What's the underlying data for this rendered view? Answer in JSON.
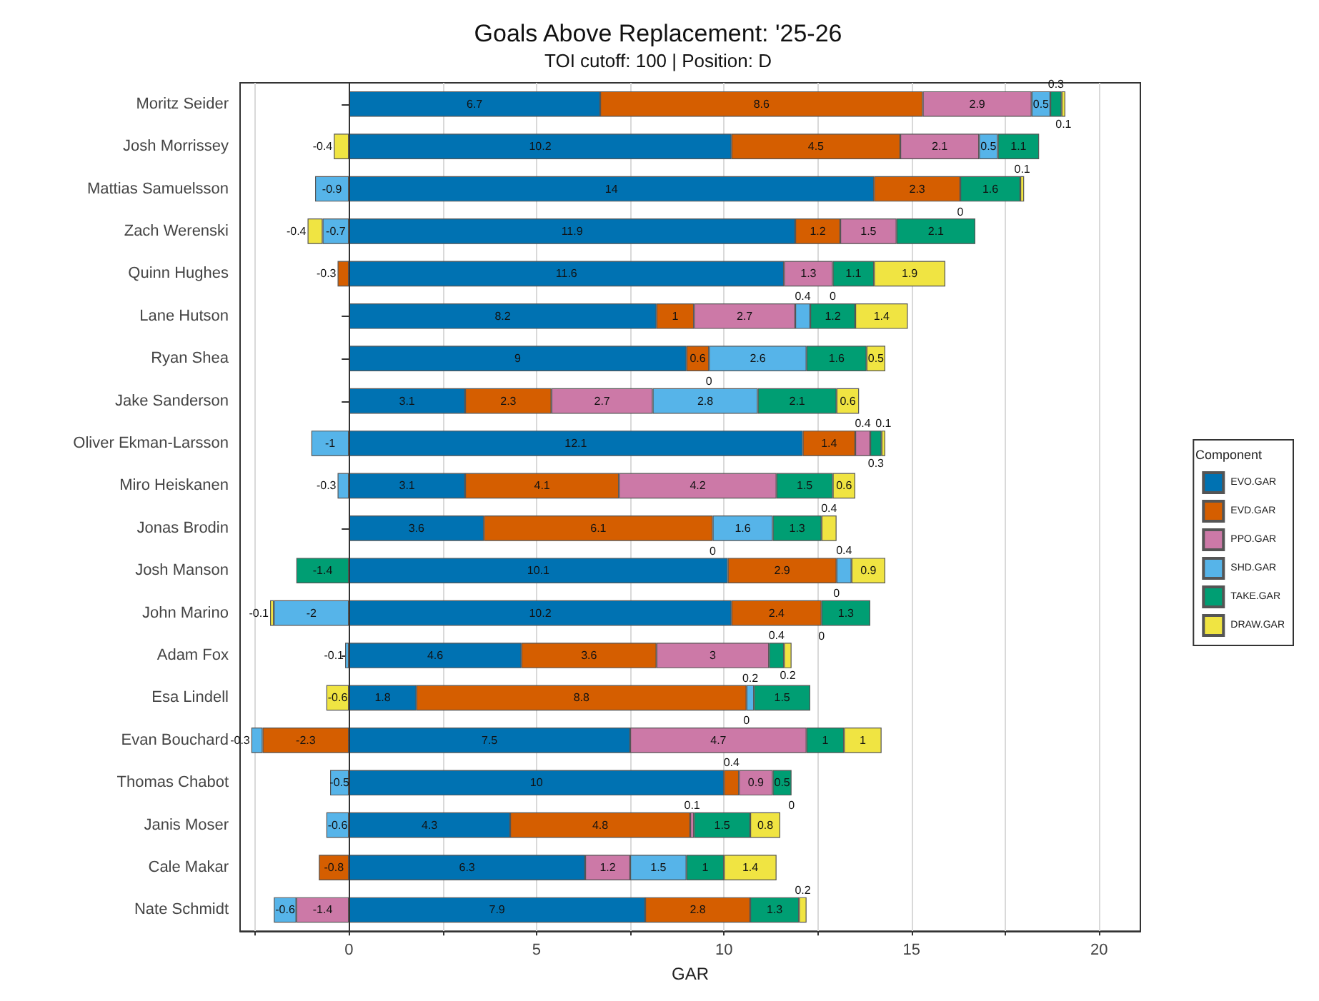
{
  "chart_data": {
    "type": "bar",
    "orientation": "horizontal",
    "stacked": true,
    "title": "Goals Above Replacement: '25-26",
    "subtitle": "TOI cutoff: 100 | Position: D",
    "xlabel": "GAR",
    "legend_title": "Component",
    "legend": "right",
    "grid": "x",
    "annotations": [
      {
        "text": "0",
        "x": 16.3,
        "y": "Mattias Samuelsson"
      },
      {
        "text": "0",
        "x": 12.9,
        "y": "Quinn Hughes"
      },
      {
        "text": "0",
        "x": 9.6,
        "y": "Ryan Shea"
      },
      {
        "text": "0",
        "x": 9.7,
        "y": "Jonas Brodin"
      },
      {
        "text": "0",
        "x": 13,
        "y": "Josh Manson"
      },
      {
        "text": "0",
        "x": 12.6,
        "y": "John Marino"
      },
      {
        "text": "0",
        "x": 10.6,
        "y": "Esa Lindell"
      },
      {
        "text": "0",
        "x": 11.8,
        "y": "Thomas Chabot"
      }
    ],
    "categories": [
      "Moritz Seider",
      "Josh Morrissey",
      "Mattias Samuelsson",
      "Zach Werenski",
      "Quinn Hughes",
      "Lane Hutson",
      "Ryan Shea",
      "Jake Sanderson",
      "Oliver Ekman-Larsson",
      "Miro Heiskanen",
      "Jonas Brodin",
      "Josh Manson",
      "John Marino",
      "Adam Fox",
      "Esa Lindell",
      "Evan Bouchard",
      "Thomas Chabot",
      "Janis Moser",
      "Cale Makar",
      "Nate Schmidt"
    ],
    "xlim": [
      -2.9,
      21.1
    ],
    "xticks": [
      {
        "value": -2.5,
        "label": null
      },
      0,
      {
        "value": 2.5,
        "label": null
      },
      5,
      {
        "value": 7.5,
        "label": null
      },
      10,
      {
        "value": 12.5,
        "label": null
      },
      15,
      {
        "value": 17.5,
        "label": null
      },
      20
    ],
    "ref_lines": [
      {
        "axis": "x",
        "value": 0,
        "color": "#333333"
      }
    ],
    "series": [
      {
        "name": "EVO.GAR",
        "color": "#0072b2",
        "values": [
          6.7,
          10.2,
          14,
          11.9,
          11.6,
          8.2,
          9,
          3.1,
          12.1,
          3.1,
          3.6,
          10.1,
          10.2,
          4.6,
          1.8,
          7.5,
          10,
          4.3,
          6.3,
          7.9
        ],
        "value_labels": [
          "6.7",
          "10.2",
          "14",
          "11.9",
          "11.6",
          "8.2",
          "9",
          "3.1",
          "12.1",
          "3.1",
          "3.6",
          "10.1",
          "10.2",
          "4.6",
          "1.8",
          "7.5",
          "10",
          "4.3",
          "6.3",
          "7.9"
        ]
      },
      {
        "name": "EVD.GAR",
        "color": "#d55e00",
        "values": [
          8.6,
          4.5,
          2.3,
          1.2,
          -0.3,
          1,
          0.6,
          2.3,
          1.4,
          4.1,
          6.1,
          2.9,
          2.4,
          3.6,
          8.8,
          -2.3,
          0.4,
          4.8,
          -0.8,
          2.8
        ],
        "value_labels": [
          "8.6",
          "4.5",
          "2.3",
          "1.2",
          "-0.3",
          "1",
          "0.6",
          "2.3",
          "1.4",
          "4.1",
          "6.1",
          "2.9",
          "2.4",
          "3.6",
          "8.8",
          "-2.3",
          "0.4",
          "4.8",
          "-0.8",
          "2.8"
        ]
      },
      {
        "name": "PPO.GAR",
        "color": "#cc79a7",
        "values": [
          2.9,
          2.1,
          0,
          1.5,
          1.3,
          2.7,
          0,
          2.7,
          0.4,
          4.2,
          0,
          0,
          0,
          3,
          0,
          4.7,
          0.9,
          0.1,
          1.2,
          -1.4
        ],
        "value_labels": [
          "2.9",
          "2.1",
          null,
          "1.5",
          "1.3",
          "2.7",
          null,
          "2.7",
          "0.4",
          "4.2",
          null,
          null,
          null,
          "3",
          null,
          "4.7",
          "0.9",
          "0.1",
          "1.2",
          "-1.4"
        ]
      },
      {
        "name": "SHD.GAR",
        "color": "#56b4e9",
        "values": [
          0.5,
          0.5,
          -0.9,
          -0.7,
          0,
          0.4,
          2.6,
          2.8,
          -1,
          -0.3,
          1.6,
          0.4,
          -2,
          -0.1,
          0.2,
          -0.3,
          -0.5,
          -0.6,
          1.5,
          -0.6
        ],
        "value_labels": [
          "0.5",
          "0.5",
          "-0.9",
          "-0.7",
          null,
          "0.4",
          "2.6",
          "2.8",
          "-1",
          "-0.3",
          "1.6",
          "0.4",
          "-2",
          "-0.1",
          "0.2",
          "-0.3",
          "-0.5",
          "-0.6",
          "1.5",
          "-0.6"
        ]
      },
      {
        "name": "TAKE.GAR",
        "color": "#009e73",
        "values": [
          0.3,
          1.1,
          1.6,
          2.1,
          1.1,
          1.2,
          1.6,
          2.1,
          0.3,
          1.5,
          1.3,
          -1.4,
          1.3,
          0.4,
          1.5,
          1,
          0.5,
          1.5,
          1,
          1.3
        ],
        "value_labels": [
          "0.3",
          "1.1",
          "1.6",
          "2.1",
          "1.1",
          "1.2",
          "1.6",
          "2.1",
          "0.3",
          "1.5",
          "1.3",
          "-1.4",
          "1.3",
          "0.4",
          "1.5",
          "1",
          "0.5",
          "1.5",
          "1",
          "1.3"
        ]
      },
      {
        "name": "DRAW.GAR",
        "color": "#f0e442",
        "values": [
          0.1,
          -0.4,
          0.1,
          -0.4,
          1.9,
          1.4,
          0.5,
          0.6,
          0.1,
          0.6,
          0.4,
          0.9,
          -0.1,
          0.2,
          -0.6,
          1,
          0,
          0.8,
          1.4,
          0.2
        ],
        "value_labels": [
          "0.1",
          "-0.4",
          "0.1",
          "-0.4",
          "1.9",
          "1.4",
          "0.5",
          "0.6",
          "0.1",
          "0.6",
          "0.4",
          "0.9",
          "-0.1",
          "0.2",
          "-0.6",
          "1",
          null,
          "0.8",
          "1.4",
          "0.2"
        ]
      }
    ]
  }
}
